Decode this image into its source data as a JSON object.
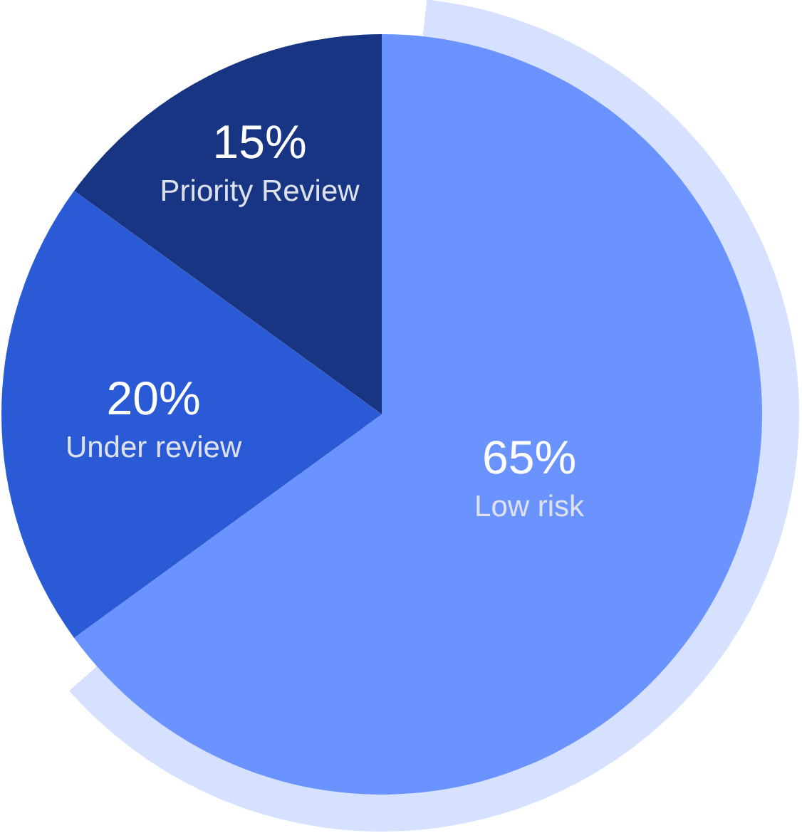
{
  "chart_data": {
    "type": "pie",
    "categories": [
      "Low risk",
      "Under review",
      "Priority Review"
    ],
    "values": [
      65,
      20,
      15
    ],
    "colors": [
      "#6b93ff",
      "#2b5ad6",
      "#183583"
    ],
    "value_labels": [
      "65%",
      "20%",
      "15%"
    ]
  }
}
